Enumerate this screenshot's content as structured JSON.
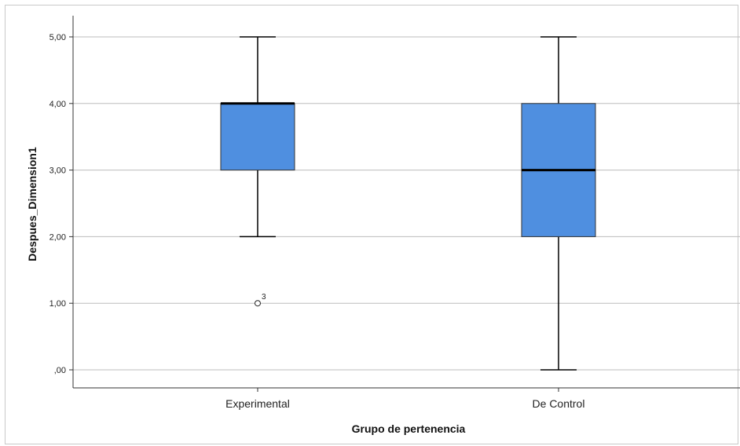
{
  "chart_data": {
    "type": "boxplot",
    "xlabel": "Grupo de pertenencia",
    "ylabel": "Despues_Dimension1",
    "ylim": [
      0,
      5
    ],
    "yticks": [
      {
        "value": 0,
        "label": ",00"
      },
      {
        "value": 1,
        "label": "1,00"
      },
      {
        "value": 2,
        "label": "2,00"
      },
      {
        "value": 3,
        "label": "3,00"
      },
      {
        "value": 4,
        "label": "4,00"
      },
      {
        "value": 5,
        "label": "5,00"
      }
    ],
    "grid": "horizontal",
    "box_color": "#4f8fe0",
    "categories": [
      "Experimental",
      "De Control"
    ],
    "boxes": [
      {
        "category": "Experimental",
        "whisker_low": 2,
        "q1": 3,
        "median": 4,
        "q3": 4,
        "whisker_high": 5,
        "outliers": [
          {
            "value": 1,
            "label": "3"
          }
        ]
      },
      {
        "category": "De Control",
        "whisker_low": 0,
        "q1": 2,
        "median": 3,
        "q3": 4,
        "whisker_high": 5,
        "outliers": []
      }
    ]
  }
}
